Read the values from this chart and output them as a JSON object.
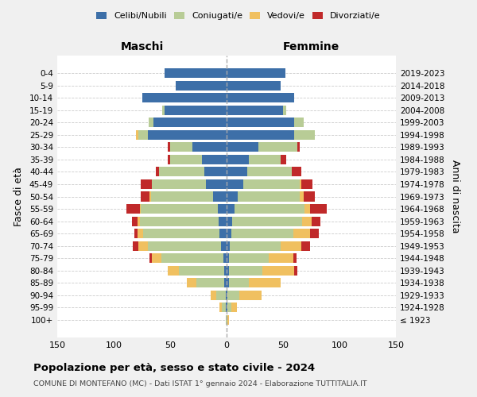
{
  "age_groups": [
    "100+",
    "95-99",
    "90-94",
    "85-89",
    "80-84",
    "75-79",
    "70-74",
    "65-69",
    "60-64",
    "55-59",
    "50-54",
    "45-49",
    "40-44",
    "35-39",
    "30-34",
    "25-29",
    "20-24",
    "15-19",
    "10-14",
    "5-9",
    "0-4"
  ],
  "birth_years": [
    "≤ 1923",
    "1924-1928",
    "1929-1933",
    "1934-1938",
    "1939-1943",
    "1944-1948",
    "1949-1953",
    "1954-1958",
    "1959-1963",
    "1964-1968",
    "1969-1973",
    "1974-1978",
    "1979-1983",
    "1984-1988",
    "1989-1993",
    "1994-1998",
    "1999-2003",
    "2004-2008",
    "2009-2013",
    "2014-2018",
    "2019-2023"
  ],
  "male": {
    "celibi": [
      0,
      1,
      1,
      2,
      2,
      3,
      5,
      6,
      7,
      8,
      12,
      18,
      20,
      22,
      30,
      70,
      65,
      55,
      75,
      45,
      55
    ],
    "coniugati": [
      1,
      3,
      8,
      25,
      40,
      55,
      65,
      68,
      70,
      68,
      55,
      48,
      40,
      28,
      20,
      8,
      4,
      2,
      0,
      0,
      0
    ],
    "vedovi": [
      0,
      2,
      5,
      8,
      10,
      8,
      8,
      5,
      2,
      1,
      1,
      0,
      0,
      0,
      0,
      2,
      0,
      0,
      0,
      0,
      0
    ],
    "divorziati": [
      0,
      0,
      0,
      0,
      0,
      2,
      5,
      3,
      5,
      12,
      8,
      10,
      3,
      2,
      2,
      0,
      0,
      0,
      0,
      0,
      0
    ]
  },
  "female": {
    "nubili": [
      0,
      1,
      1,
      2,
      2,
      2,
      3,
      4,
      5,
      7,
      10,
      15,
      18,
      20,
      28,
      60,
      60,
      50,
      60,
      48,
      52
    ],
    "coniugate": [
      1,
      3,
      10,
      18,
      30,
      35,
      45,
      55,
      62,
      62,
      55,
      50,
      40,
      28,
      35,
      18,
      8,
      3,
      0,
      0,
      0
    ],
    "vedove": [
      1,
      5,
      20,
      28,
      28,
      22,
      18,
      15,
      8,
      5,
      3,
      1,
      0,
      0,
      0,
      0,
      0,
      0,
      0,
      0,
      0
    ],
    "divorziate": [
      0,
      0,
      0,
      0,
      3,
      3,
      8,
      8,
      8,
      15,
      10,
      10,
      8,
      5,
      2,
      0,
      0,
      0,
      0,
      0,
      0
    ]
  },
  "colors": {
    "celibi": "#3d6fa8",
    "coniugati": "#b8cc96",
    "vedovi": "#f0c060",
    "divorziati": "#c0292a"
  },
  "xlim": 150,
  "title": "Popolazione per età, sesso e stato civile - 2024",
  "subtitle": "COMUNE DI MONTEFANO (MC) - Dati ISTAT 1° gennaio 2024 - Elaborazione TUTTITALIA.IT",
  "ylabel_left": "Fasce di età",
  "ylabel_right": "Anni di nascita",
  "xlabel_left": "Maschi",
  "xlabel_right": "Femmine",
  "bg_color": "#f0f0f0",
  "plot_bg": "#ffffff",
  "legend_labels": [
    "Celibi/Nubili",
    "Coniugati/e",
    "Vedovi/e",
    "Divorziati/e"
  ]
}
